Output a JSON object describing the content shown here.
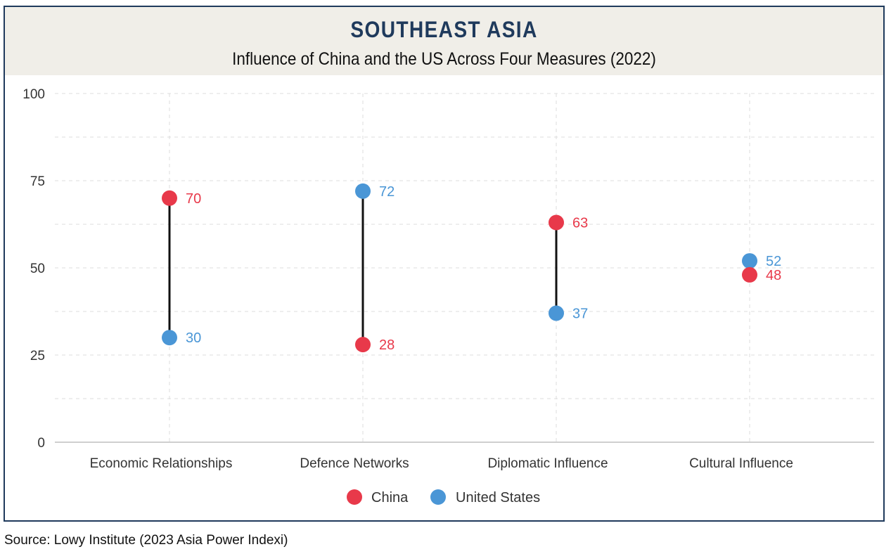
{
  "header": {
    "title": "SOUTHEAST ASIA",
    "subtitle": "Influence of China and the US Across Four Measures (2022)"
  },
  "source": "Source: Lowy Institute (2023 Asia Power Indexi)",
  "colors": {
    "china": "#e8394a",
    "us": "#4a96d6",
    "connector": "#111111",
    "grid": "#dcdcdc",
    "axis": "#bfbfbf",
    "title": "#1f3a5c"
  },
  "chart_data": {
    "type": "dumbbell",
    "title": "SOUTHEAST ASIA",
    "subtitle": "Influence of China and the US Across Four Measures (2022)",
    "xlabel": "",
    "ylabel": "",
    "ylim": [
      0,
      100
    ],
    "yticks": [
      0,
      25,
      50,
      75,
      100
    ],
    "ytick_labels": [
      "0",
      "25",
      "50",
      "75",
      "100"
    ],
    "grid": true,
    "legend_position": "bottom-center",
    "categories": [
      "Economic Relationships",
      "Defence Networks",
      "Diplomatic Influence",
      "Cultural Influence"
    ],
    "series": [
      {
        "name": "China",
        "values": [
          70,
          28,
          63,
          48
        ]
      },
      {
        "name": "United States",
        "values": [
          30,
          72,
          37,
          52
        ]
      }
    ]
  }
}
